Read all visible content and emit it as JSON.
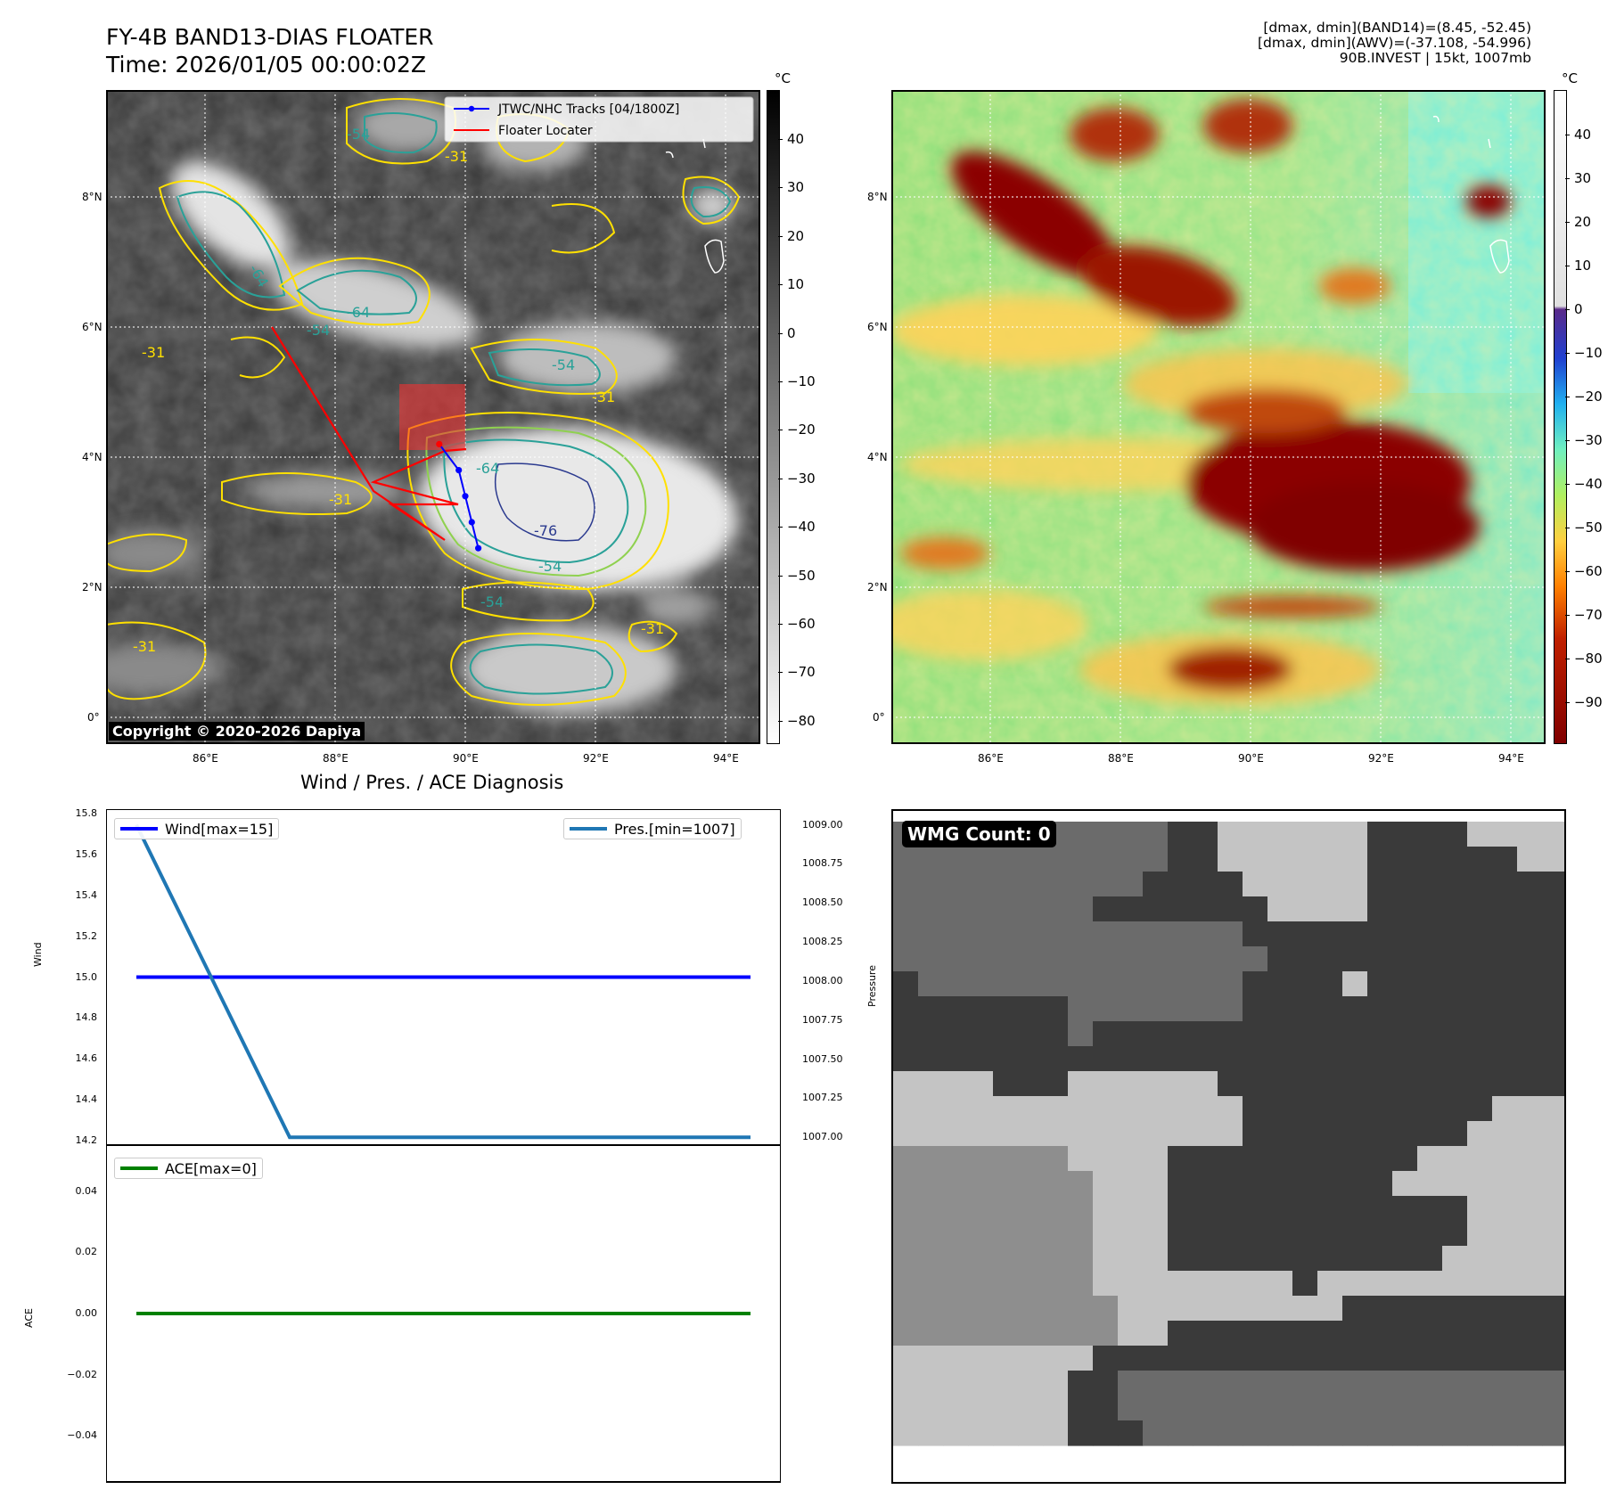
{
  "header": {
    "title_line1": "FY-4B BAND13-DIAS FLOATER",
    "title_line2": "Time: 2026/01/05 00:00:02Z",
    "info_line1": "[dmax, dmin](BAND14)=(8.45, -52.45)",
    "info_line2": "[dmax, dmin](AWV)=(-37.108, -54.996)",
    "info_line3": "90B.INVEST | 15kt, 1007mb"
  },
  "map_axes": {
    "lon_labels": [
      "86°E",
      "88°E",
      "90°E",
      "92°E",
      "94°E"
    ],
    "lat_labels": [
      "8°N",
      "6°N",
      "4°N",
      "2°N",
      "0°"
    ],
    "lon_values": [
      86,
      88,
      90,
      92,
      94
    ],
    "lat_values": [
      8,
      6,
      4,
      2,
      0
    ]
  },
  "ir_panel": {
    "legend": [
      {
        "label": "JTWC/NHC Tracks [04/1800Z]",
        "color": "#0000ff"
      },
      {
        "label": "Floater Locater",
        "color": "#ff0000"
      }
    ],
    "contour_labels": [
      "-31",
      "-54",
      "-64",
      "-76"
    ],
    "colorbar_unit": "°C",
    "colorbar_ticks": [
      "40",
      "30",
      "20",
      "10",
      "0",
      "−10",
      "−20",
      "−30",
      "−40",
      "−50",
      "−60",
      "−70",
      "−80"
    ],
    "copyright": "Copyright © 2020-2026 Dapiya",
    "track_points": [
      {
        "lon": 89.6,
        "lat": 4.2
      },
      {
        "lon": 89.9,
        "lat": 3.8
      },
      {
        "lon": 90.0,
        "lat": 3.4
      },
      {
        "lon": 90.1,
        "lat": 3.0
      },
      {
        "lon": 90.2,
        "lat": 2.6
      }
    ]
  },
  "awv_panel": {
    "colorbar_unit": "°C",
    "colorbar_ticks": [
      "40",
      "30",
      "20",
      "10",
      "0",
      "−10",
      "−20",
      "−30",
      "−40",
      "−50",
      "−60",
      "−70",
      "−80",
      "−90"
    ]
  },
  "diagnosis": {
    "title": "Wind / Pres. / ACE Diagnosis",
    "wind_ylabel": "Wind",
    "pres_ylabel": "Pressure",
    "ace_ylabel": "ACE",
    "wind_legend": "Wind[max=15]",
    "pres_legend": "Pres.[min=1007]",
    "ace_legend": "ACE[max=0]",
    "wind_ticks": [
      "15.8",
      "15.6",
      "15.4",
      "15.2",
      "15.0",
      "14.8",
      "14.6",
      "14.4",
      "14.2"
    ],
    "pres_ticks": [
      "1009.00",
      "1008.75",
      "1008.50",
      "1008.25",
      "1008.00",
      "1007.75",
      "1007.50",
      "1007.25",
      "1007.00"
    ],
    "ace_ticks": [
      "0.04",
      "0.02",
      "0.00",
      "−0.02",
      "−0.04"
    ]
  },
  "chart_data": [
    {
      "type": "line",
      "title": "Wind / Pres. / ACE Diagnosis",
      "x": [
        0,
        1,
        2
      ],
      "series": [
        {
          "name": "Wind[max=15]",
          "axis": "Wind",
          "color": "#0000ff",
          "values": [
            15,
            15,
            15
          ]
        },
        {
          "name": "Pres.[min=1007]",
          "axis": "Pressure",
          "color": "#1f77b4",
          "values": [
            1009,
            1007,
            1007
          ]
        }
      ],
      "ylabel": "Wind",
      "ylabel_right": "Pressure",
      "ylim": [
        14.18,
        15.82
      ],
      "ylim_right": [
        1006.95,
        1009.1
      ]
    },
    {
      "type": "line",
      "x": [
        0,
        1,
        2
      ],
      "series": [
        {
          "name": "ACE[max=0]",
          "color": "#008000",
          "values": [
            0,
            0,
            0
          ]
        }
      ],
      "ylabel": "ACE",
      "ylim": [
        -0.055,
        0.055
      ]
    }
  ],
  "wmg_panel": {
    "label": "WMG Count: 0"
  },
  "colors": {
    "track": "#0000ff",
    "locater": "#ff0000",
    "pressure_line": "#1f77b4",
    "wind_line": "#0000ff",
    "ace_line": "#008000",
    "contour_yellow": "#ffe000",
    "contour_green": "#8fd14f",
    "contour_teal": "#2aa198",
    "contour_navy": "#2b3a8f"
  }
}
